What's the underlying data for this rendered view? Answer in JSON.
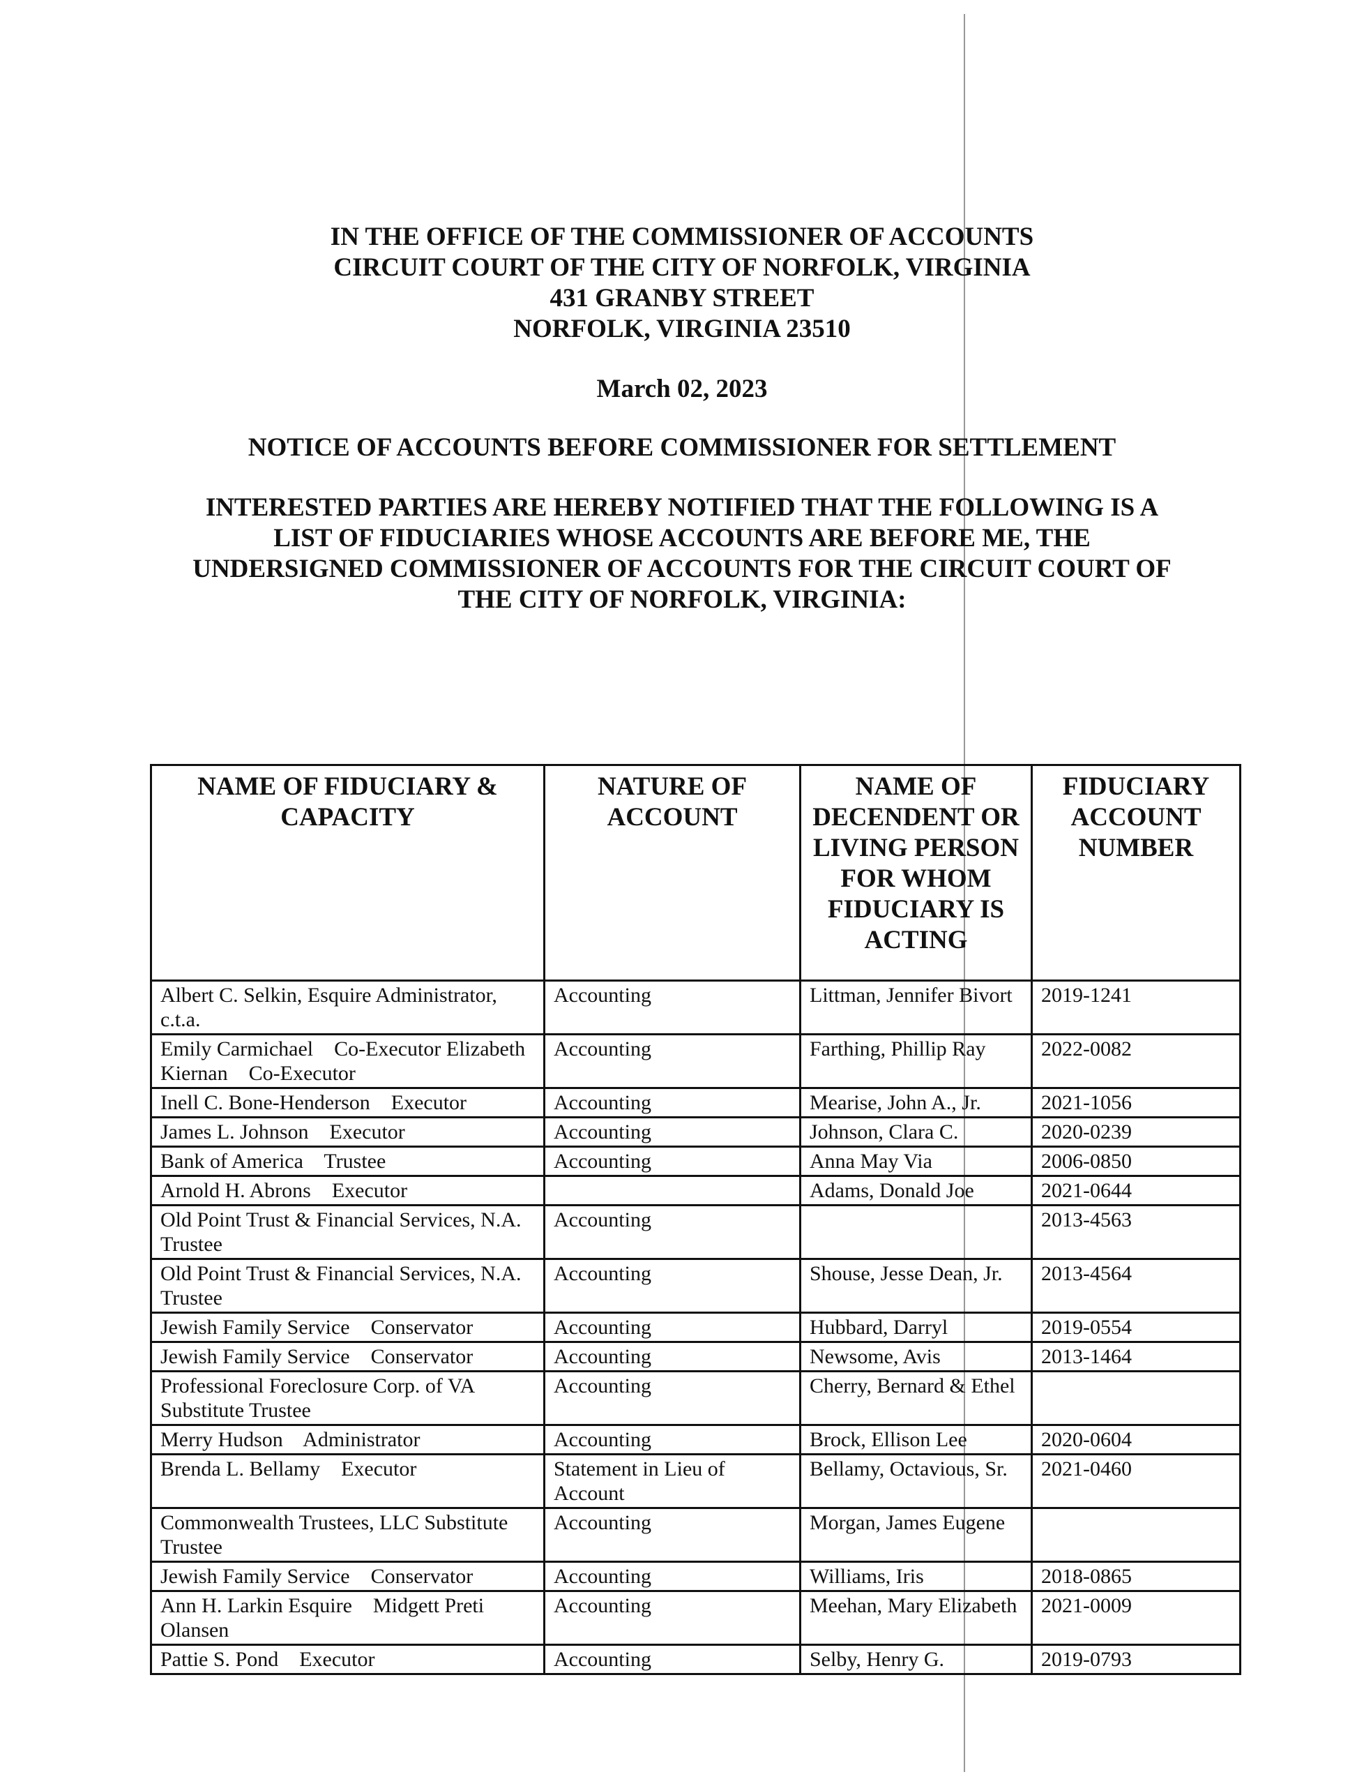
{
  "header": {
    "lines": [
      "IN THE OFFICE OF THE COMMISSIONER OF ACCOUNTS",
      "CIRCUIT COURT OF THE CITY OF NORFOLK, VIRGINIA",
      "431 GRANBY STREET",
      "NORFOLK, VIRGINIA  23510"
    ],
    "date": "March 02, 2023",
    "notice_title": "NOTICE OF ACCOUNTS BEFORE COMMISSIONER FOR SETTLEMENT",
    "paragraph": [
      "INTERESTED PARTIES ARE HEREBY NOTIFIED THAT THE FOLLOWING IS A",
      "LIST OF FIDUCIARIES WHOSE ACCOUNTS ARE BEFORE ME, THE",
      "UNDERSIGNED COMMISSIONER OF ACCOUNTS FOR THE CIRCUIT COURT OF",
      "THE CITY OF NORFOLK, VIRGINIA:"
    ]
  },
  "table": {
    "columns": [
      "NAME OF FIDUCIARY & CAPACITY",
      "NATURE OF ACCOUNT",
      "NAME OF DECENDENT OR LIVING PERSON FOR WHOM FIDUCIARY IS ACTING",
      "FIDUCIARY ACCOUNT NUMBER"
    ],
    "rows": [
      {
        "fiduciary": "Albert C. Selkin, Esquire Administrator, c.t.a.",
        "nature": "Accounting",
        "person": "Littman, Jennifer Bivort",
        "number": "2019-1241"
      },
      {
        "fiduciary": "Emily Carmichael    Co-Executor Elizabeth Kiernan    Co-Executor",
        "nature": "Accounting",
        "person": "Farthing, Phillip Ray",
        "number": "2022-0082"
      },
      {
        "fiduciary": "Inell C. Bone-Henderson    Executor",
        "nature": "Accounting",
        "person": "Mearise, John A., Jr.",
        "number": "2021-1056"
      },
      {
        "fiduciary": "James L. Johnson    Executor",
        "nature": "Accounting",
        "person": "Johnson, Clara C.",
        "number": "2020-0239"
      },
      {
        "fiduciary": "Bank of America    Trustee",
        "nature": "Accounting",
        "person": "Anna May Via",
        "number": "2006-0850"
      },
      {
        "fiduciary": "Arnold H. Abrons    Executor",
        "nature": "",
        "person": "Adams, Donald Joe",
        "number": "2021-0644"
      },
      {
        "fiduciary": "Old Point Trust & Financial Services, N.A.    Trustee",
        "nature": "Accounting",
        "person": "",
        "number": "2013-4563"
      },
      {
        "fiduciary": "Old Point Trust & Financial Services, N.A.    Trustee",
        "nature": "Accounting",
        "person": "Shouse, Jesse Dean, Jr.",
        "number": "2013-4564"
      },
      {
        "fiduciary": "Jewish Family Service    Conservator",
        "nature": "Accounting",
        "person": "Hubbard, Darryl",
        "number": "2019-0554"
      },
      {
        "fiduciary": "Jewish Family Service    Conservator",
        "nature": "Accounting",
        "person": "Newsome, Avis",
        "number": "2013-1464"
      },
      {
        "fiduciary": "Professional Foreclosure Corp. of VA Substitute Trustee",
        "nature": "Accounting",
        "person": "Cherry, Bernard & Ethel",
        "number": ""
      },
      {
        "fiduciary": "Merry Hudson    Administrator",
        "nature": "Accounting",
        "person": "Brock, Ellison Lee",
        "number": "2020-0604"
      },
      {
        "fiduciary": "Brenda L. Bellamy    Executor",
        "nature": "Statement in Lieu of Account",
        "person": "Bellamy, Octavious, Sr.",
        "number": "2021-0460"
      },
      {
        "fiduciary": "Commonwealth Trustees, LLC Substitute Trustee",
        "nature": "Accounting",
        "person": "Morgan, James Eugene",
        "number": ""
      },
      {
        "fiduciary": "Jewish Family Service    Conservator",
        "nature": "Accounting",
        "person": "Williams, Iris",
        "number": "2018-0865"
      },
      {
        "fiduciary": "Ann H. Larkin Esquire    Midgett Preti Olansen",
        "nature": "Accounting",
        "person": "Meehan, Mary Elizabeth",
        "number": "2021-0009"
      },
      {
        "fiduciary": "Pattie S. Pond    Executor",
        "nature": "Accounting",
        "person": "Selby, Henry G.",
        "number": "2019-0793"
      }
    ]
  }
}
